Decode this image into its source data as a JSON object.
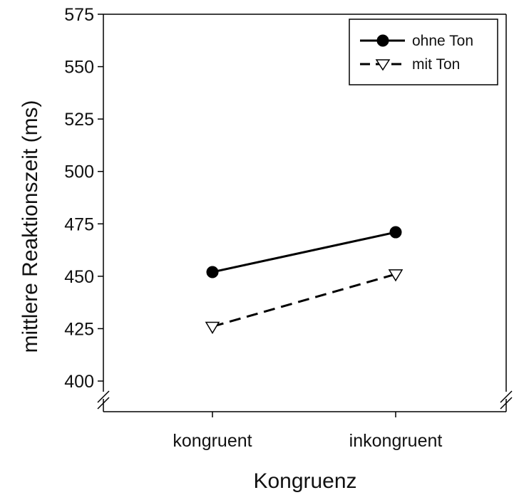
{
  "chart_data": {
    "type": "line",
    "xlabel": "Kongruenz",
    "ylabel": "mittlere Reaktionszeit (ms)",
    "categories": [
      "kongruent",
      "inkongruent"
    ],
    "ylim": [
      400,
      575
    ],
    "yticks": [
      400,
      425,
      450,
      475,
      500,
      525,
      550,
      575
    ],
    "axis_break": true,
    "grid": false,
    "legend_position": "top-right",
    "series": [
      {
        "name": "ohne Ton",
        "values": [
          452,
          471
        ],
        "marker": "filled-circle",
        "line": "solid",
        "color": "#000000"
      },
      {
        "name": "mit Ton",
        "values": [
          426,
          451
        ],
        "marker": "open-triangle-down",
        "line": "dashed",
        "color": "#000000"
      }
    ]
  }
}
